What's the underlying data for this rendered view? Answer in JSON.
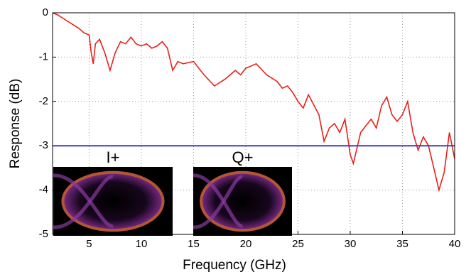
{
  "chart_data": {
    "type": "line",
    "xlabel": "Frequency (GHz)",
    "ylabel": "Response (dB)",
    "xlim": [
      1.5,
      40
    ],
    "ylim": [
      -5,
      0
    ],
    "xticks": [
      5,
      10,
      15,
      20,
      25,
      30,
      35,
      40
    ],
    "yticks": [
      -5,
      -4,
      -3,
      -2,
      -1,
      0
    ],
    "grid": true,
    "series": [
      {
        "color": "#e8201a",
        "x": [
          1.5,
          2,
          3,
          4,
          4.5,
          5,
          5.2,
          5.4,
          5.6,
          6,
          6.5,
          7,
          7.5,
          8,
          8.5,
          9,
          9.5,
          10,
          10.5,
          11,
          11.5,
          12,
          12.5,
          13,
          13.5,
          14,
          15,
          16,
          17,
          18,
          19,
          19.5,
          20,
          21,
          22,
          23,
          23.5,
          24,
          24.5,
          25,
          25.5,
          26,
          27,
          27.5,
          28,
          28.5,
          29,
          29.5,
          30,
          30.3,
          31,
          31.5,
          32,
          32.5,
          33,
          33.5,
          34,
          34.5,
          35,
          35.5,
          36,
          36.5,
          37,
          37.5,
          38,
          38.5,
          39,
          39.5,
          40
        ],
        "values": [
          0,
          -0.05,
          -0.2,
          -0.35,
          -0.45,
          -0.5,
          -0.9,
          -1.15,
          -0.7,
          -0.6,
          -0.9,
          -1.3,
          -0.9,
          -0.65,
          -0.7,
          -0.55,
          -0.7,
          -0.75,
          -0.7,
          -0.8,
          -0.75,
          -0.65,
          -0.8,
          -1.3,
          -1.1,
          -1.15,
          -1.1,
          -1.4,
          -1.65,
          -1.5,
          -1.3,
          -1.4,
          -1.25,
          -1.15,
          -1.4,
          -1.55,
          -1.7,
          -1.65,
          -1.8,
          -2.0,
          -2.15,
          -1.85,
          -2.3,
          -2.9,
          -2.6,
          -2.5,
          -2.7,
          -2.4,
          -3.2,
          -3.4,
          -2.7,
          -2.55,
          -2.4,
          -2.6,
          -2.1,
          -1.9,
          -2.3,
          -2.45,
          -2.3,
          -2.0,
          -2.7,
          -3.1,
          -2.8,
          -3.0,
          -3.5,
          -4.0,
          -3.6,
          -2.7,
          -3.3
        ]
      },
      {
        "color": "#3a3ad0",
        "x": [
          1.5,
          40
        ],
        "values": [
          -3,
          -3
        ]
      }
    ],
    "insets": [
      "I+",
      "Q+"
    ]
  }
}
